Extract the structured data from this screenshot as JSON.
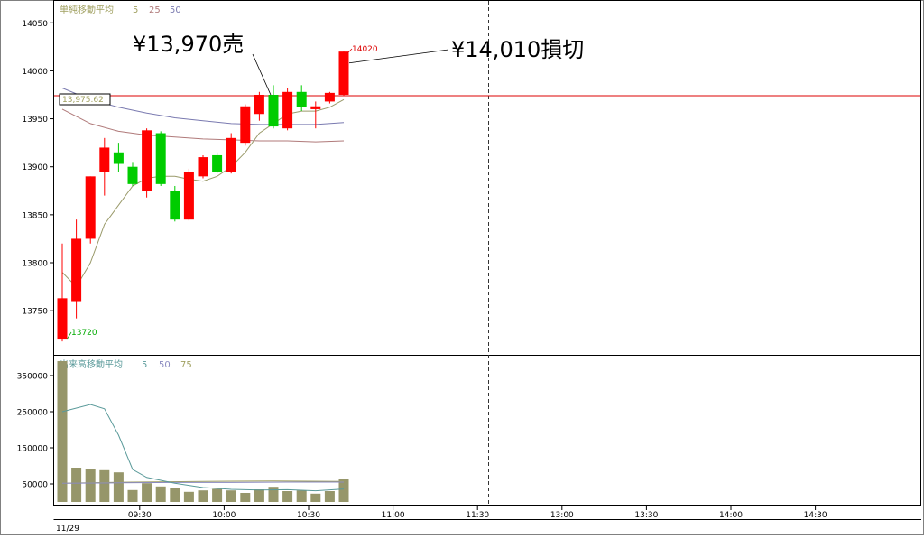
{
  "chart_data": [
    {
      "type": "candlestick",
      "panel": "price",
      "title": "単純移動平均",
      "ma_periods": [
        "5",
        "25",
        "50"
      ],
      "ma_colors": [
        "#9a9a6a",
        "#b07a7a",
        "#7a7ab0"
      ],
      "yticks": [
        "14050",
        "14000",
        "13950",
        "13900",
        "13850",
        "13800",
        "13750"
      ],
      "ylim": [
        13705,
        14070
      ],
      "up_color": "#ff0000",
      "down_color": "#00cc00",
      "candles": [
        {
          "t": 0,
          "o": 13720,
          "h": 13820,
          "l": 13718,
          "c": 13763
        },
        {
          "t": 1,
          "o": 13760,
          "h": 13845,
          "l": 13742,
          "c": 13825
        },
        {
          "t": 2,
          "o": 13825,
          "h": 13890,
          "l": 13820,
          "c": 13890
        },
        {
          "t": 3,
          "o": 13895,
          "h": 13930,
          "l": 13870,
          "c": 13920
        },
        {
          "t": 4,
          "o": 13915,
          "h": 13925,
          "l": 13895,
          "c": 13903
        },
        {
          "t": 5,
          "o": 13900,
          "h": 13905,
          "l": 13880,
          "c": 13882
        },
        {
          "t": 6,
          "o": 13875,
          "h": 13940,
          "l": 13868,
          "c": 13938
        },
        {
          "t": 7,
          "o": 13935,
          "h": 13937,
          "l": 13880,
          "c": 13882
        },
        {
          "t": 8,
          "o": 13875,
          "h": 13880,
          "l": 13843,
          "c": 13845
        },
        {
          "t": 9,
          "o": 13845,
          "h": 13898,
          "l": 13844,
          "c": 13895
        },
        {
          "t": 10,
          "o": 13890,
          "h": 13912,
          "l": 13888,
          "c": 13910
        },
        {
          "t": 11,
          "o": 13912,
          "h": 13915,
          "l": 13893,
          "c": 13895
        },
        {
          "t": 12,
          "o": 13895,
          "h": 13935,
          "l": 13893,
          "c": 13930
        },
        {
          "t": 13,
          "o": 13925,
          "h": 13965,
          "l": 13922,
          "c": 13963
        },
        {
          "t": 14,
          "o": 13955,
          "h": 13978,
          "l": 13948,
          "c": 13975
        },
        {
          "t": 15,
          "o": 13975,
          "h": 13985,
          "l": 13940,
          "c": 13942
        },
        {
          "t": 16,
          "o": 13940,
          "h": 13982,
          "l": 13938,
          "c": 13978
        },
        {
          "t": 17,
          "o": 13978,
          "h": 13985,
          "l": 13958,
          "c": 13962
        },
        {
          "t": 18,
          "o": 13960,
          "h": 13968,
          "l": 13940,
          "c": 13963
        },
        {
          "t": 19,
          "o": 13968,
          "h": 13978,
          "l": 13966,
          "c": 13977
        },
        {
          "t": 20,
          "o": 13975,
          "h": 14020,
          "l": 13974,
          "c": 14020
        }
      ],
      "ma5": [
        [
          0,
          13790
        ],
        [
          1,
          13775
        ],
        [
          2,
          13800
        ],
        [
          3,
          13840
        ],
        [
          4,
          13860
        ],
        [
          5,
          13880
        ],
        [
          6,
          13888
        ],
        [
          7,
          13890
        ],
        [
          8,
          13890
        ],
        [
          9,
          13887
        ],
        [
          10,
          13885
        ],
        [
          11,
          13890
        ],
        [
          12,
          13900
        ],
        [
          13,
          13915
        ],
        [
          14,
          13935
        ],
        [
          15,
          13945
        ],
        [
          16,
          13955
        ],
        [
          17,
          13958
        ],
        [
          18,
          13958
        ],
        [
          19,
          13962
        ],
        [
          20,
          13970
        ]
      ],
      "ma25": [
        [
          0,
          13960
        ],
        [
          2,
          13945
        ],
        [
          4,
          13937
        ],
        [
          6,
          13933
        ],
        [
          8,
          13931
        ],
        [
          10,
          13929
        ],
        [
          12,
          13928
        ],
        [
          14,
          13927
        ],
        [
          16,
          13927
        ],
        [
          18,
          13926
        ],
        [
          20,
          13927
        ]
      ],
      "ma50": [
        [
          0,
          13982
        ],
        [
          2,
          13970
        ],
        [
          4,
          13962
        ],
        [
          6,
          13956
        ],
        [
          8,
          13951
        ],
        [
          10,
          13948
        ],
        [
          12,
          13945
        ],
        [
          14,
          13944
        ],
        [
          16,
          13944
        ],
        [
          18,
          13944
        ],
        [
          20,
          13946
        ]
      ],
      "hline": 13974,
      "hline_color": "#dd0000",
      "price_tag": "13,975.62",
      "high_label": "14020",
      "low_label": "13720",
      "annotations": [
        {
          "text": "¥13,970売",
          "target_t": 15,
          "target_y": 13975
        },
        {
          "text": "¥14,010損切",
          "target_t": 20,
          "target_y": 14010
        }
      ]
    },
    {
      "type": "bar",
      "panel": "volume",
      "title": "出来高移動平均",
      "ma_periods": [
        "5",
        "50",
        "75"
      ],
      "ma_colors": [
        "#5a9a9a",
        "#8a8ac0",
        "#a0a060"
      ],
      "yticks": [
        "350000",
        "250000",
        "150000",
        "50000"
      ],
      "ylim": [
        0,
        400000
      ],
      "bar_color": "#96966a",
      "values": [
        390000,
        95000,
        92000,
        88000,
        82000,
        33000,
        52000,
        43000,
        38000,
        28000,
        32000,
        36000,
        32000,
        25000,
        35000,
        42000,
        30000,
        32000,
        23000,
        30000,
        63000
      ],
      "ma5": [
        [
          0,
          250000
        ],
        [
          2,
          270000
        ],
        [
          3,
          258000
        ],
        [
          4,
          185000
        ],
        [
          5,
          90000
        ],
        [
          6,
          68000
        ],
        [
          8,
          52000
        ],
        [
          10,
          40000
        ],
        [
          12,
          35000
        ],
        [
          14,
          33000
        ],
        [
          16,
          34000
        ],
        [
          18,
          31000
        ],
        [
          20,
          36000
        ]
      ],
      "ma50": [
        [
          0,
          52000
        ],
        [
          4,
          53000
        ],
        [
          8,
          54000
        ],
        [
          12,
          54000
        ],
        [
          16,
          55000
        ],
        [
          20,
          55000
        ]
      ],
      "ma75": [
        [
          0,
          52000
        ],
        [
          5,
          55000
        ],
        [
          10,
          57000
        ],
        [
          15,
          58000
        ],
        [
          20,
          57000
        ]
      ]
    }
  ],
  "xaxis": {
    "date_label": "11/29",
    "ticks": [
      {
        "label": "09:30",
        "t": 5.5
      },
      {
        "label": "10:00",
        "t": 11.5
      },
      {
        "label": "10:30",
        "t": 17.5
      },
      {
        "label": "11:00",
        "t": 23.5
      },
      {
        "label": "11:30",
        "t": 29.5
      },
      {
        "label": "13:00",
        "t": 35.5
      },
      {
        "label": "13:30",
        "t": 41.5
      },
      {
        "label": "14:00",
        "t": 47.5
      },
      {
        "label": "14:30",
        "t": 53.5
      }
    ]
  }
}
